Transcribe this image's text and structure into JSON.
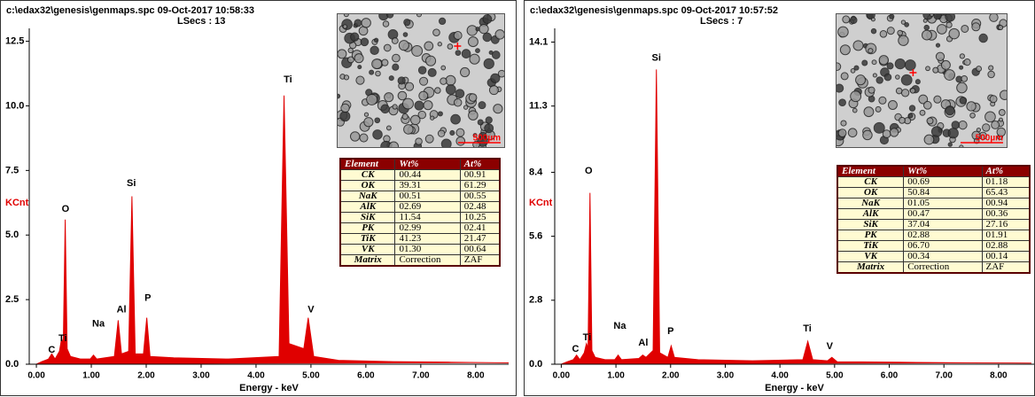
{
  "chart_data": [
    {
      "type": "area",
      "header": "c:\\edax32\\genesis\\genmaps.spc  09-Oct-2017 10:58:33",
      "lsecs": "LSecs : 13",
      "y_label": "KCnt",
      "x_label": "Energy - keV",
      "color": "#e00000",
      "xlim": [
        -0.13,
        8.6
      ],
      "ylim": [
        0,
        13
      ],
      "xticks": [
        {
          "value": 0,
          "label": "0.00"
        },
        {
          "value": 1,
          "label": "1.00"
        },
        {
          "value": 2,
          "label": "2.00"
        },
        {
          "value": 3,
          "label": "3.00"
        },
        {
          "value": 4,
          "label": "4.00"
        },
        {
          "value": 5,
          "label": "5.00"
        },
        {
          "value": 6,
          "label": "6.00"
        },
        {
          "value": 7,
          "label": "7.00"
        },
        {
          "value": 8,
          "label": "8.00"
        }
      ],
      "yticks": [
        12.5,
        {
          "value": 10,
          "label": "10.0"
        },
        7.5,
        {
          "value": 5,
          "label": "5.0"
        },
        2.5,
        {
          "value": 0,
          "label": "0.0"
        }
      ],
      "x": [
        0,
        0.1,
        0.22,
        0.28,
        0.34,
        0.42,
        0.46,
        0.49,
        0.525,
        0.56,
        0.62,
        0.8,
        0.98,
        1.04,
        1.1,
        1.42,
        1.49,
        1.55,
        1.68,
        1.74,
        1.8,
        1.95,
        2.01,
        2.07,
        2.5,
        3.5,
        4.42,
        4.51,
        4.6,
        4.87,
        4.95,
        5.05,
        5.5,
        6.5,
        7.5,
        8.6
      ],
      "values": [
        0,
        0.1,
        0.2,
        0.4,
        0.2,
        0.5,
        1.0,
        0.8,
        5.6,
        0.6,
        0.3,
        0.2,
        0.2,
        0.35,
        0.2,
        0.3,
        1.7,
        0.4,
        0.5,
        6.5,
        0.4,
        0.4,
        1.8,
        0.3,
        0.25,
        0.2,
        0.3,
        10.4,
        0.8,
        0.6,
        1.8,
        0.3,
        0.15,
        0.1,
        0.08,
        0.05
      ],
      "annotations": [
        {
          "text": "C",
          "x": 0.28,
          "y": 0.55
        },
        {
          "text": "Ti",
          "x": 0.48,
          "y": 1.0
        },
        {
          "text": "O",
          "x": 0.53,
          "y": 6.0
        },
        {
          "text": "Na",
          "x": 1.13,
          "y": 1.55
        },
        {
          "text": "Al",
          "x": 1.55,
          "y": 2.1
        },
        {
          "text": "Si",
          "x": 1.73,
          "y": 7.0
        },
        {
          "text": "P",
          "x": 2.03,
          "y": 2.55
        },
        {
          "text": "Ti",
          "x": 4.58,
          "y": 11.0
        },
        {
          "text": "V",
          "x": 5.0,
          "y": 2.1
        }
      ],
      "image_scale": "500µm",
      "table": {
        "columns": [
          "Element",
          "Wt%",
          "At%"
        ],
        "rows": [
          [
            "CK",
            "00.44",
            "00.91"
          ],
          [
            "OK",
            "39.31",
            "61.29"
          ],
          [
            "NaK",
            "00.51",
            "00.55"
          ],
          [
            "AlK",
            "02.69",
            "02.48"
          ],
          [
            "SiK",
            "11.54",
            "10.25"
          ],
          [
            "PK",
            "02.99",
            "02.41"
          ],
          [
            "TiK",
            "41.23",
            "21.47"
          ],
          [
            "VK",
            "01.30",
            "00.64"
          ],
          [
            "Matrix",
            "Correction",
            "ZAF"
          ]
        ]
      }
    },
    {
      "type": "area",
      "header": "c:\\edax32\\genesis\\genmaps.spc  09-Oct-2017 10:57:52",
      "lsecs": "LSecs : 7",
      "y_label": "KCnt",
      "x_label": "Energy - keV",
      "color": "#e00000",
      "xlim": [
        -0.12,
        8.65
      ],
      "ylim": [
        0,
        14.7
      ],
      "xticks": [
        {
          "value": 0,
          "label": "0.00"
        },
        {
          "value": 1,
          "label": "1.00"
        },
        {
          "value": 2,
          "label": "2.00"
        },
        {
          "value": 3,
          "label": "3.00"
        },
        {
          "value": 4,
          "label": "4.00"
        },
        {
          "value": 5,
          "label": "5.00"
        },
        {
          "value": 6,
          "label": "6.00"
        },
        {
          "value": 7,
          "label": "7.00"
        },
        {
          "value": 8,
          "label": "8.00"
        }
      ],
      "yticks": [
        14.1,
        11.3,
        8.4,
        5.6,
        2.8,
        {
          "value": 0,
          "label": "0.0"
        }
      ],
      "x": [
        0,
        0.1,
        0.22,
        0.28,
        0.34,
        0.42,
        0.46,
        0.49,
        0.525,
        0.56,
        0.62,
        0.8,
        0.98,
        1.04,
        1.1,
        1.42,
        1.49,
        1.55,
        1.68,
        1.74,
        1.8,
        1.95,
        2.01,
        2.07,
        2.5,
        3.5,
        4.42,
        4.51,
        4.6,
        4.87,
        4.95,
        5.05,
        5.5,
        6.5,
        7.5,
        8.6
      ],
      "values": [
        0,
        0.1,
        0.2,
        0.4,
        0.2,
        0.5,
        0.9,
        0.7,
        7.5,
        0.6,
        0.3,
        0.2,
        0.2,
        0.4,
        0.2,
        0.25,
        0.4,
        0.3,
        0.6,
        12.9,
        0.5,
        0.3,
        0.8,
        0.3,
        0.2,
        0.15,
        0.2,
        1.0,
        0.2,
        0.15,
        0.3,
        0.1,
        0.1,
        0.08,
        0.06,
        0.05
      ],
      "annotations": [
        {
          "text": "C",
          "x": 0.26,
          "y": 0.66
        },
        {
          "text": "Ti",
          "x": 0.47,
          "y": 1.16
        },
        {
          "text": "O",
          "x": 0.5,
          "y": 8.45
        },
        {
          "text": "Na",
          "x": 1.07,
          "y": 1.67
        },
        {
          "text": "Al",
          "x": 1.5,
          "y": 0.93
        },
        {
          "text": "Si",
          "x": 1.74,
          "y": 13.4
        },
        {
          "text": "P",
          "x": 2.0,
          "y": 1.43
        },
        {
          "text": "Ti",
          "x": 4.5,
          "y": 1.55
        },
        {
          "text": "V",
          "x": 4.91,
          "y": 0.78
        }
      ],
      "image_scale": "500µm",
      "table": {
        "columns": [
          "Element",
          "Wt%",
          "At%"
        ],
        "rows": [
          [
            "CK",
            "00.69",
            "01.18"
          ],
          [
            "OK",
            "50.84",
            "65.43"
          ],
          [
            "NaK",
            "01.05",
            "00.94"
          ],
          [
            "AlK",
            "00.47",
            "00.36"
          ],
          [
            "SiK",
            "37.04",
            "27.16"
          ],
          [
            "PK",
            "02.88",
            "01.91"
          ],
          [
            "TiK",
            "06.70",
            "02.88"
          ],
          [
            "VK",
            "00.34",
            "00.14"
          ],
          [
            "Matrix",
            "Correction",
            "ZAF"
          ]
        ]
      }
    }
  ]
}
